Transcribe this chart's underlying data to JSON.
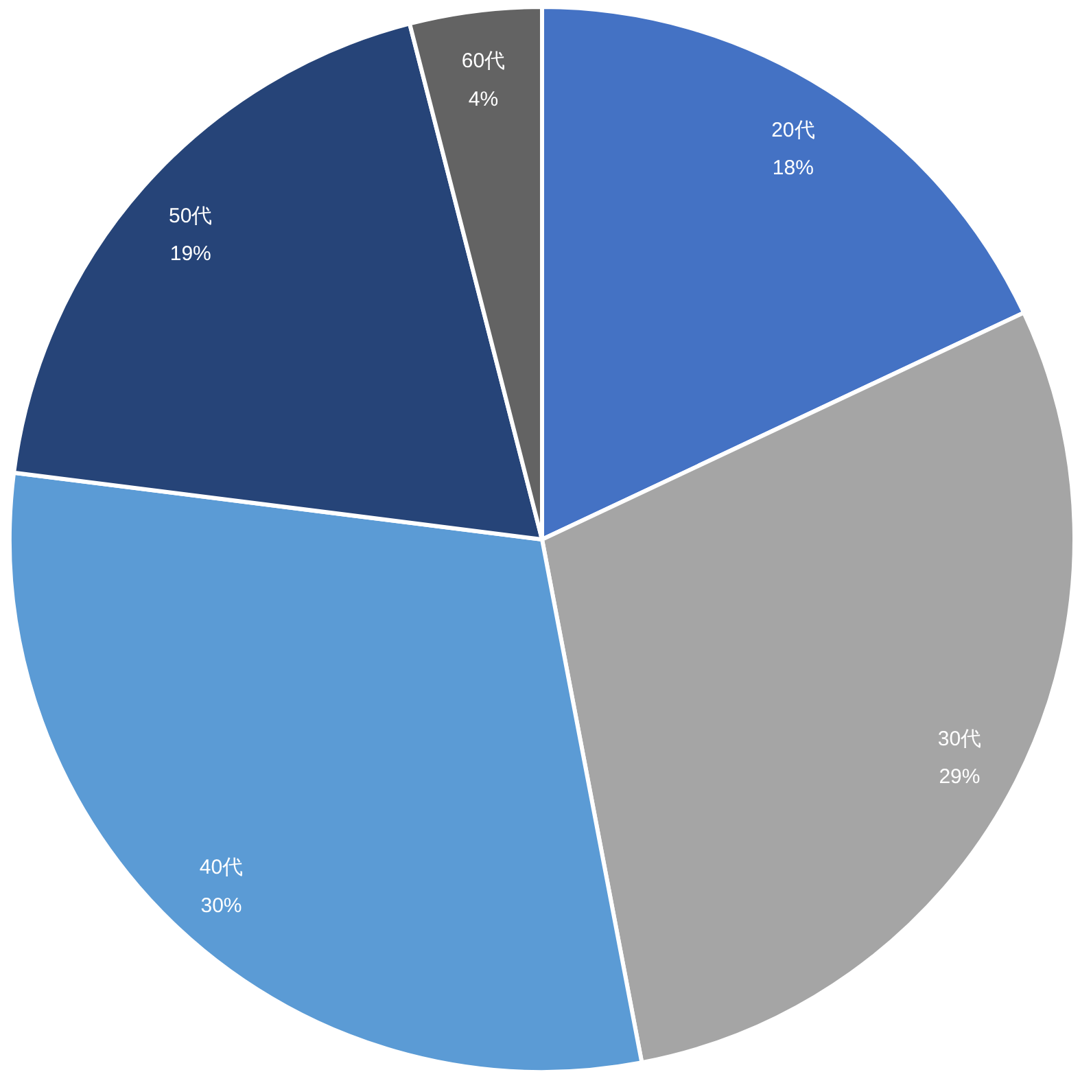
{
  "chart_data": {
    "type": "pie",
    "categories": [
      "20代",
      "30代",
      "40代",
      "50代",
      "60代"
    ],
    "values": [
      18,
      29,
      30,
      19,
      4
    ],
    "colors": [
      "#4472c4",
      "#a5a5a5",
      "#5b9bd5",
      "#264478",
      "#636363"
    ],
    "value_labels": [
      "18%",
      "29%",
      "30%",
      "19%",
      "4%"
    ],
    "legend": false
  }
}
